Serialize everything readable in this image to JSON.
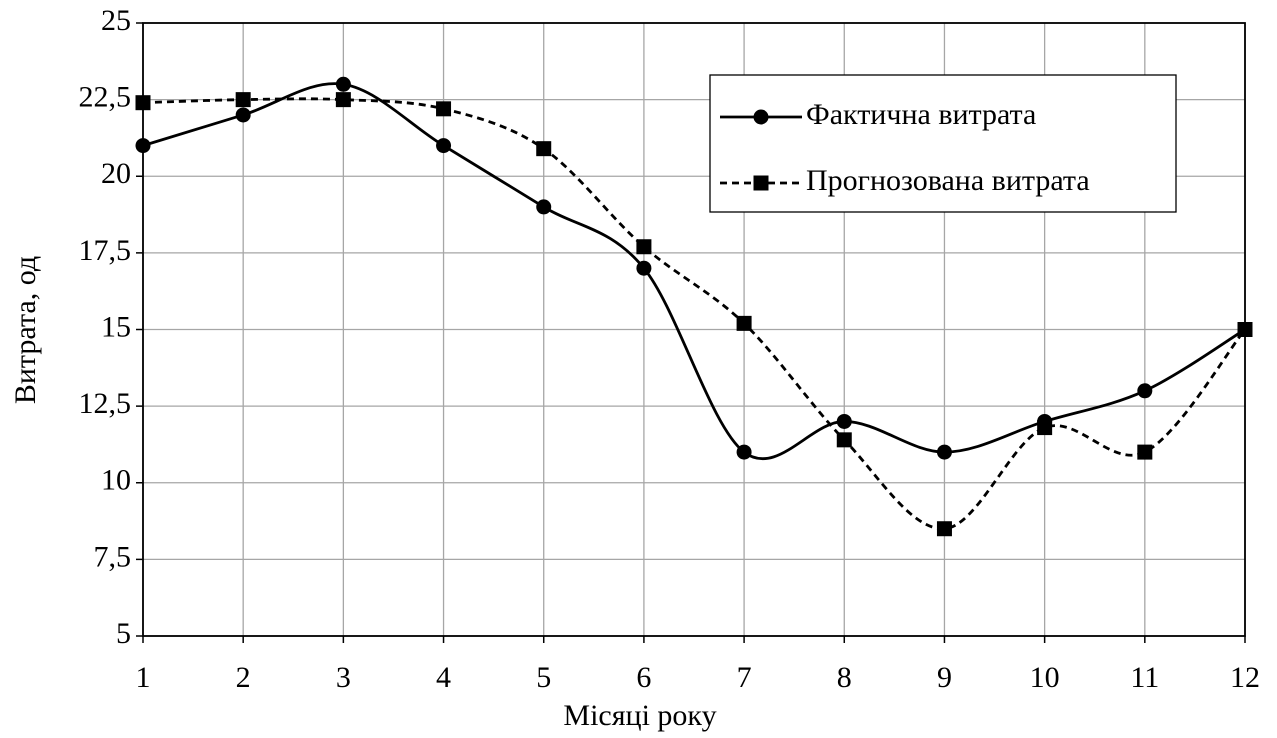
{
  "chart_data": {
    "type": "line",
    "smooth": true,
    "x_label": "Місяці року",
    "y_label": "Витрата, од",
    "x": [
      1,
      2,
      3,
      4,
      5,
      6,
      7,
      8,
      9,
      10,
      11,
      12
    ],
    "xlim": [
      1,
      12
    ],
    "xticks": [
      1,
      2,
      3,
      4,
      5,
      6,
      7,
      8,
      9,
      10,
      11,
      12
    ],
    "ylim": [
      5,
      25
    ],
    "yticks": [
      5,
      {
        "value": 7.5,
        "label": "7,5"
      },
      10,
      {
        "value": 12.5,
        "label": "12,5"
      },
      15,
      {
        "value": 17.5,
        "label": "17,5"
      },
      20,
      {
        "value": 22.5,
        "label": "22,5"
      },
      25
    ],
    "grid": true,
    "legend": "upper right",
    "series": [
      {
        "name": "Фактична витрата",
        "color": "#000000",
        "line_style": "solid",
        "marker": "circle",
        "values": [
          21,
          22,
          23,
          21,
          19,
          17,
          11,
          12,
          11,
          12,
          13,
          15
        ]
      },
      {
        "name": "Прогнозована витрата",
        "color": "#000000",
        "line_style": "dashed",
        "marker": "square",
        "values": [
          22.4,
          22.5,
          22.5,
          22.2,
          20.9,
          17.7,
          15.2,
          11.4,
          8.5,
          11.8,
          11,
          15
        ]
      }
    ]
  }
}
